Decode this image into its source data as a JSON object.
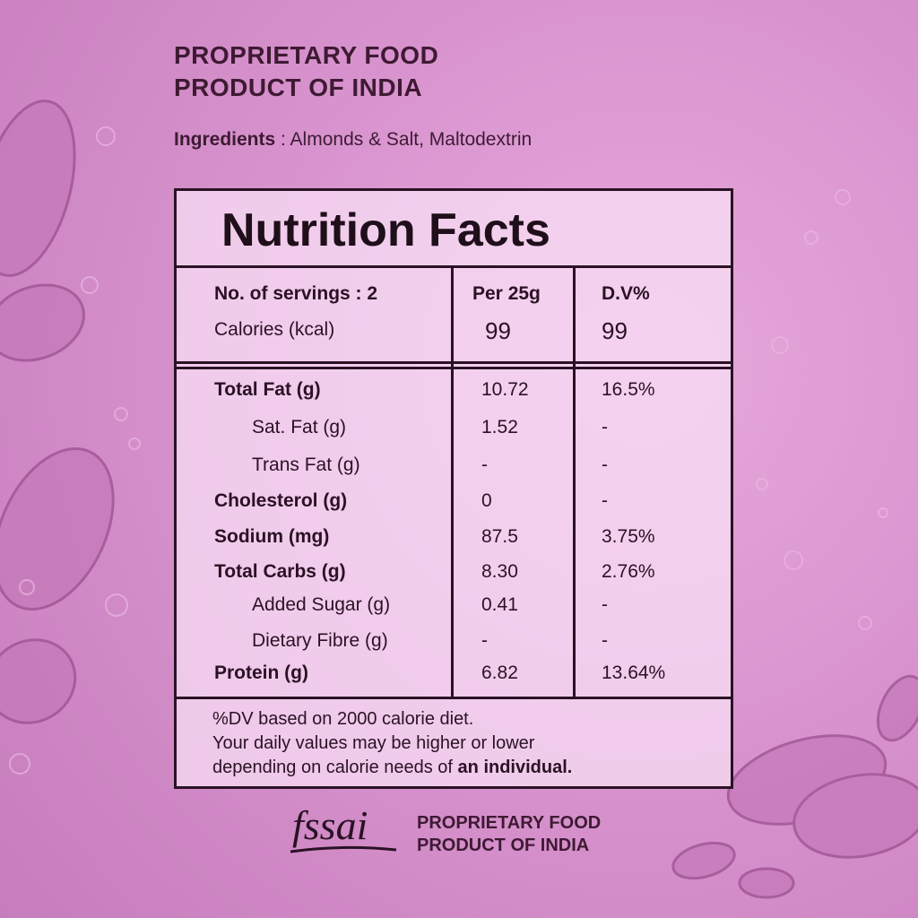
{
  "header": {
    "line1": "PROPRIETARY FOOD",
    "line2": "PRODUCT OF INDIA"
  },
  "ingredients": {
    "label": "Ingredients",
    "separator": " : ",
    "value": "Almonds & Salt, Maltodextrin"
  },
  "panel": {
    "title": "Nutrition Facts",
    "servings_label": "No. of servings : 2",
    "calories_label": "Calories (kcal)",
    "col_per": "Per 25g",
    "col_dv": "D.V%",
    "calories_per": "99",
    "calories_dv": "99",
    "rows": [
      {
        "label": "Total Fat (g)",
        "per": "10.72",
        "dv": "16.5%"
      },
      {
        "label": "Sat. Fat (g)",
        "per": "1.52",
        "dv": "-"
      },
      {
        "label": "Trans Fat (g)",
        "per": "-",
        "dv": "-"
      },
      {
        "label": "Cholesterol (g)",
        "per": "0",
        "dv": "-"
      },
      {
        "label": "Sodium (mg)",
        "per": "87.5",
        "dv": "3.75%"
      },
      {
        "label": "Total Carbs (g)",
        "per": "8.30",
        "dv": "2.76%"
      },
      {
        "label": "Added Sugar (g)",
        "per": "0.41",
        "dv": "-"
      },
      {
        "label": "Dietary Fibre (g)",
        "per": "-",
        "dv": "-"
      },
      {
        "label": "Protein (g)",
        "per": "6.82",
        "dv": "13.64%"
      }
    ],
    "footnote": {
      "line1": "%DV based on 2000 calorie diet.",
      "line2": "Your daily values may be higher or lower",
      "line3a": "depending on calorie needs of ",
      "line3b": "an individual."
    }
  },
  "footer": {
    "logo_text": "fssai",
    "line1": "PROPRIETARY FOOD",
    "line2": "PRODUCT OF INDIA"
  }
}
